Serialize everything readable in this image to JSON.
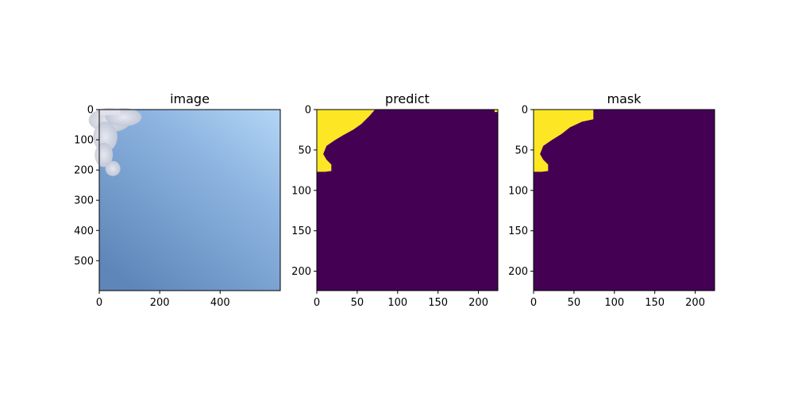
{
  "chart_data": [
    {
      "type": "heatmap",
      "title": "image",
      "content": "photo",
      "xlim": [
        0,
        599
      ],
      "ylim": [
        599,
        0
      ],
      "xticks": [
        0,
        200,
        400
      ],
      "yticks": [
        0,
        100,
        200,
        300,
        400,
        500
      ],
      "palette": {
        "sky_top_right": "#b3d6f5",
        "sky_bottom": "#5e86b8",
        "cloud": "#e6e4ea"
      }
    },
    {
      "type": "heatmap",
      "title": "predict",
      "content": "mask",
      "xlim": [
        0,
        224
      ],
      "ylim": [
        224,
        0
      ],
      "xticks": [
        0,
        50,
        100,
        150,
        200
      ],
      "yticks": [
        0,
        50,
        100,
        150,
        200
      ],
      "colors": {
        "background": "#440154",
        "foreground": "#fde725"
      },
      "foreground_boundary": [
        [
          0,
          0
        ],
        [
          72,
          0
        ],
        [
          65,
          8
        ],
        [
          55,
          18
        ],
        [
          45,
          25
        ],
        [
          32,
          32
        ],
        [
          22,
          38
        ],
        [
          12,
          45
        ],
        [
          8,
          55
        ],
        [
          12,
          62
        ],
        [
          18,
          68
        ],
        [
          18,
          76
        ],
        [
          10,
          77
        ],
        [
          0,
          77
        ]
      ],
      "extra_foreground_boundary": [
        [
          220,
          0
        ],
        [
          224,
          0
        ],
        [
          224,
          3
        ],
        [
          220,
          3
        ]
      ]
    },
    {
      "type": "heatmap",
      "title": "mask",
      "content": "mask",
      "xlim": [
        0,
        224
      ],
      "ylim": [
        224,
        0
      ],
      "xticks": [
        0,
        50,
        100,
        150,
        200
      ],
      "yticks": [
        0,
        50,
        100,
        150,
        200
      ],
      "colors": {
        "background": "#440154",
        "foreground": "#fde725"
      },
      "foreground_boundary": [
        [
          0,
          0
        ],
        [
          74,
          0
        ],
        [
          74,
          12
        ],
        [
          60,
          15
        ],
        [
          45,
          22
        ],
        [
          35,
          30
        ],
        [
          22,
          38
        ],
        [
          12,
          45
        ],
        [
          8,
          55
        ],
        [
          12,
          62
        ],
        [
          18,
          68
        ],
        [
          18,
          76
        ],
        [
          10,
          77
        ],
        [
          0,
          77
        ]
      ]
    }
  ]
}
